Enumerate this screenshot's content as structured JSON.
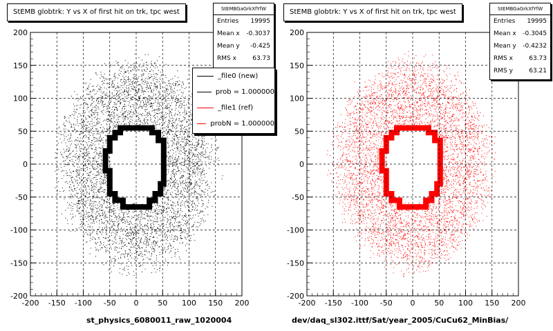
{
  "chart_data": [
    {
      "type": "scatter",
      "title": "StEMB globtrk: Y vs X of first hit on trk, tpc west",
      "xlabel": "st_physics_6080011_raw_1020004",
      "ylabel": "",
      "xlim": [
        -200,
        200
      ],
      "ylim": [
        -200,
        200
      ],
      "xticks": [
        "-200",
        "-150",
        "-100",
        "-50",
        "0",
        "50",
        "100",
        "150",
        "200"
      ],
      "yticks": [
        "200",
        "150",
        "100",
        "50",
        "0",
        "-50",
        "-100",
        "-150",
        "-200"
      ],
      "grid": true,
      "color": "#000000",
      "stats": {
        "name": "StEMBGaGrkXfYfW",
        "entries": "19995",
        "mean_x": "-0.3037",
        "mean_y": "-0.425",
        "rms_x": "63.73"
      },
      "legend": {
        "placement": "top-right",
        "entries": [
          {
            "label": "_file0 (new)",
            "color": "#000000"
          },
          {
            "label": "prob = 1.000000",
            "color": "#000000"
          },
          {
            "label": "_file1 (ref)",
            "color": "#ff0000"
          },
          {
            "label": "probN = 1.000000",
            "color": "#ff0000"
          }
        ]
      },
      "distribution": {
        "entries": 19995,
        "inner_ring_x": [
          -55,
          55
        ],
        "inner_ring_y": [
          -65,
          60
        ],
        "outer_extent_x": [
          -165,
          165
        ],
        "outer_extent_y": [
          -175,
          175
        ]
      }
    },
    {
      "type": "scatter",
      "title": "StEMB globtrk: Y vs X of first hit on trk, tpc west",
      "xlabel": "dev/daq_sl302.ittf/Sat/year_2005/CuCu62_MinBias/",
      "ylabel": "",
      "xlim": [
        -200,
        200
      ],
      "ylim": [
        -200,
        200
      ],
      "xticks": [
        "-200",
        "-150",
        "-100",
        "-50",
        "0",
        "50",
        "100",
        "150",
        "200"
      ],
      "yticks": [
        "200",
        "150",
        "100",
        "50",
        "0",
        "-50",
        "-100",
        "-150",
        "-200"
      ],
      "grid": true,
      "color": "#ff0000",
      "stats": {
        "name": "StEMBGaGrkXfYfW",
        "entries": "19995",
        "mean_x": "-0.3045",
        "mean_y": "-0.4232",
        "rms_x": "63.73",
        "rms_y": "63.21"
      },
      "distribution": {
        "entries": 19995,
        "inner_ring_x": [
          -55,
          55
        ],
        "inner_ring_y": [
          -65,
          60
        ],
        "outer_extent_x": [
          -165,
          165
        ],
        "outer_extent_y": [
          -175,
          175
        ]
      }
    }
  ]
}
